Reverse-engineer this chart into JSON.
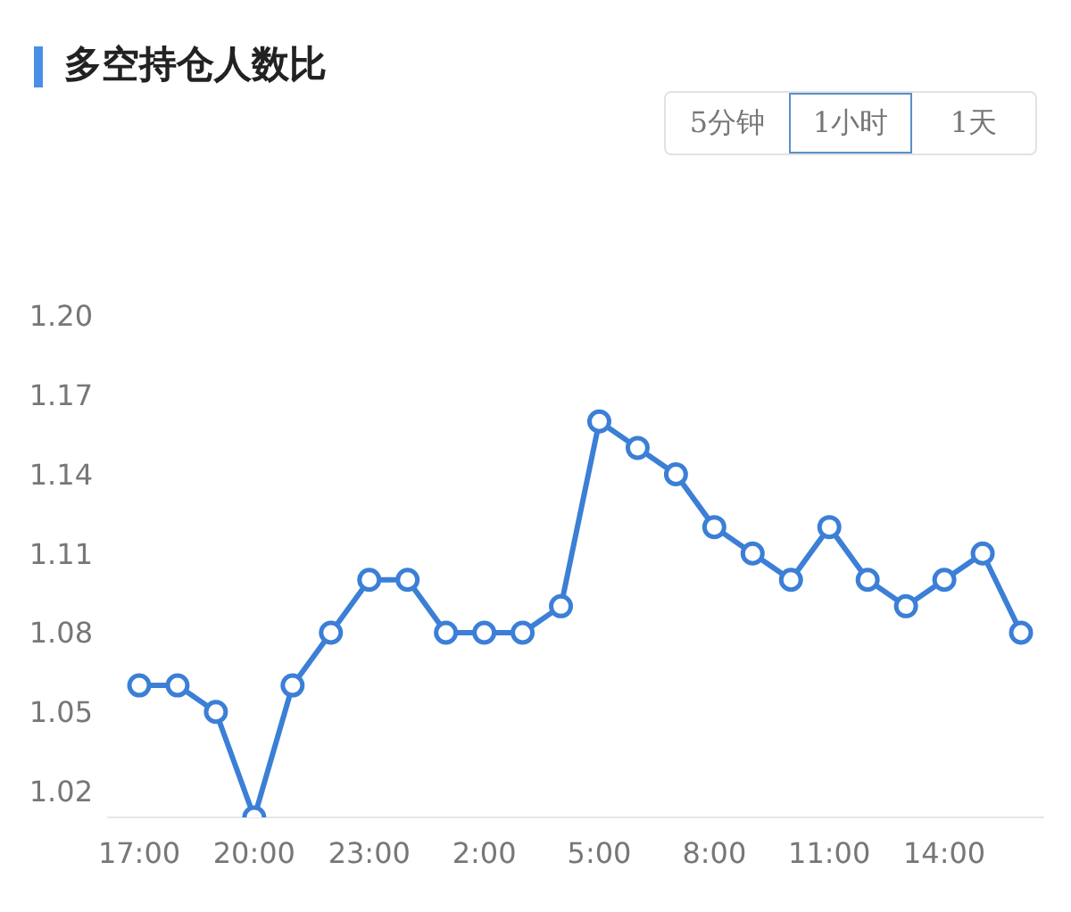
{
  "chart_data": {
    "type": "line",
    "title": "多空持仓人数比",
    "annotations": [
      "5分钟",
      "1小时",
      "1天"
    ],
    "categories": [
      "17:00",
      null,
      null,
      "20:00",
      null,
      null,
      "23:00",
      null,
      null,
      "2:00",
      null,
      null,
      "5:00",
      null,
      null,
      "8:00",
      null,
      null,
      "11:00",
      null,
      null,
      "14:00",
      null,
      null
    ],
    "series": [
      {
        "color": "#3b7fd6",
        "values": [
          1.06,
          1.06,
          1.05,
          1.01,
          1.06,
          1.08,
          1.1,
          1.1,
          1.08,
          1.08,
          1.08,
          1.09,
          1.16,
          1.15,
          1.14,
          1.12,
          1.11,
          1.1,
          1.12,
          1.1,
          1.09,
          1.1,
          1.11,
          1.08
        ]
      }
    ],
    "ylim": [
      1.01,
      1.2
    ],
    "yticks": [
      1.02,
      1.05,
      1.08,
      1.11,
      1.14,
      1.17,
      {
        "value": 1.2,
        "label": "1.20"
      }
    ],
    "grid": false,
    "legend": false,
    "marker": "circle",
    "line_style": "solid"
  }
}
